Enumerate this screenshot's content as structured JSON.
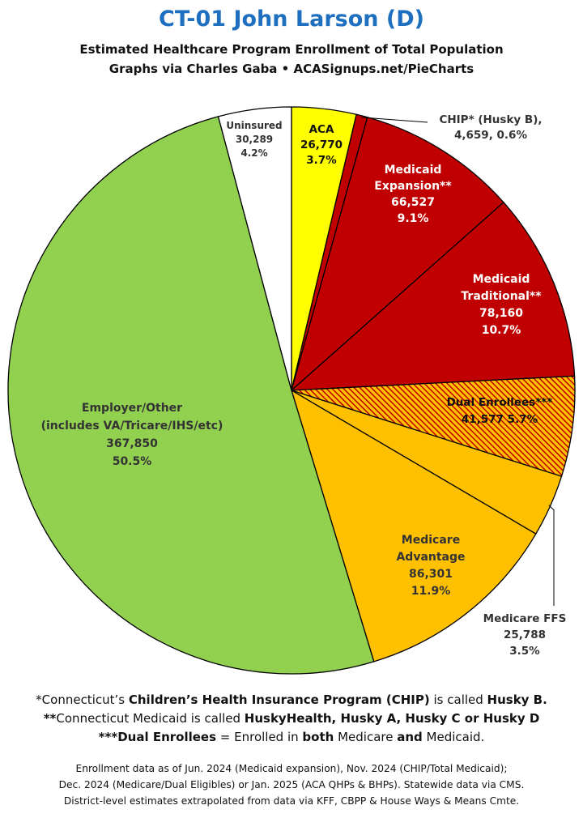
{
  "header": {
    "title": "CT-01 John Larson (D)",
    "subtitle1": "Estimated Healthcare Program Enrollment of Total Population",
    "subtitle2": "Graphs via Charles Gaba  •  ACASignups.net/PieCharts"
  },
  "colors": {
    "title": "#1f6fc0",
    "aca": "#ffff00",
    "medicaid": "#c00000",
    "medicare": "#ffc000",
    "employer": "#92d050",
    "uninsured": "#ffffff"
  },
  "chart_data": {
    "type": "pie",
    "slices": [
      {
        "key": "aca",
        "lines": [
          "ACA",
          "26,770",
          "3.7%"
        ],
        "value": 26770,
        "pct": 3.7,
        "color": "#ffff00"
      },
      {
        "key": "chip",
        "lines": [
          "CHIP* (Husky B),",
          "4,659, 0.6%"
        ],
        "value": 4659,
        "pct": 0.6,
        "color": "#c00000"
      },
      {
        "key": "medicaid-expansion",
        "lines": [
          "Medicaid",
          "Expansion**",
          "66,527",
          "9.1%"
        ],
        "value": 66527,
        "pct": 9.1,
        "color": "#c00000"
      },
      {
        "key": "medicaid-traditional",
        "lines": [
          "Medicaid",
          "Traditional**",
          "78,160",
          "10.7%"
        ],
        "value": 78160,
        "pct": 10.7,
        "color": "#c00000"
      },
      {
        "key": "dual-enrollees",
        "lines": [
          "Dual Enrollees***",
          "41,577 5.7%"
        ],
        "value": 41577,
        "pct": 5.7,
        "color": "#c00000",
        "pattern": "hatched"
      },
      {
        "key": "medicare-ffs",
        "lines": [
          "Medicare FFS",
          "25,788",
          "3.5%"
        ],
        "value": 25788,
        "pct": 3.5,
        "color": "#ffc000"
      },
      {
        "key": "medicare-advantage",
        "lines": [
          "Medicare",
          "Advantage",
          "86,301",
          "11.9%"
        ],
        "value": 86301,
        "pct": 11.9,
        "color": "#ffc000"
      },
      {
        "key": "employer-other",
        "lines": [
          "Employer/Other",
          "(includes VA/Tricare/IHS/etc)",
          "367,850",
          "50.5%"
        ],
        "value": 367850,
        "pct": 50.5,
        "color": "#92d050"
      },
      {
        "key": "uninsured",
        "lines": [
          "Uninsured",
          "30,289",
          "4.2%"
        ],
        "value": 30289,
        "pct": 4.2,
        "color": "#ffffff"
      }
    ]
  },
  "notes": {
    "line1": [
      {
        "t": "*Connecticut’s ",
        "b": false
      },
      {
        "t": "Children’s Health Insurance Program (CHIP)",
        "b": true
      },
      {
        "t": " is called ",
        "b": false
      },
      {
        "t": "Husky B.",
        "b": true
      }
    ],
    "line2": [
      {
        "t": "**",
        "b": true
      },
      {
        "t": "Connecticut Medicaid is called ",
        "b": false
      },
      {
        "t": "HuskyHealth, Husky A, Husky C or Husky D",
        "b": true
      }
    ],
    "line3": [
      {
        "t": "***Dual Enrollees",
        "b": true
      },
      {
        "t": " = Enrolled in ",
        "b": false
      },
      {
        "t": "both",
        "b": true
      },
      {
        "t": " Medicare ",
        "b": false
      },
      {
        "t": "and",
        "b": true
      },
      {
        "t": " Medicaid.",
        "b": false
      }
    ]
  },
  "footer": {
    "line1": "Enrollment data as of Jun. 2024 (Medicaid expansion), Nov. 2024 (CHIP/Total Medicaid);",
    "line2": "Dec. 2024 (Medicare/Dual Eligibles) or Jan. 2025 (ACA QHPs & BHPs). Statewide data via CMS.",
    "line3": "District-level estimates extrapolated from data via KFF, CBPP & House Ways & Means Cmte."
  }
}
